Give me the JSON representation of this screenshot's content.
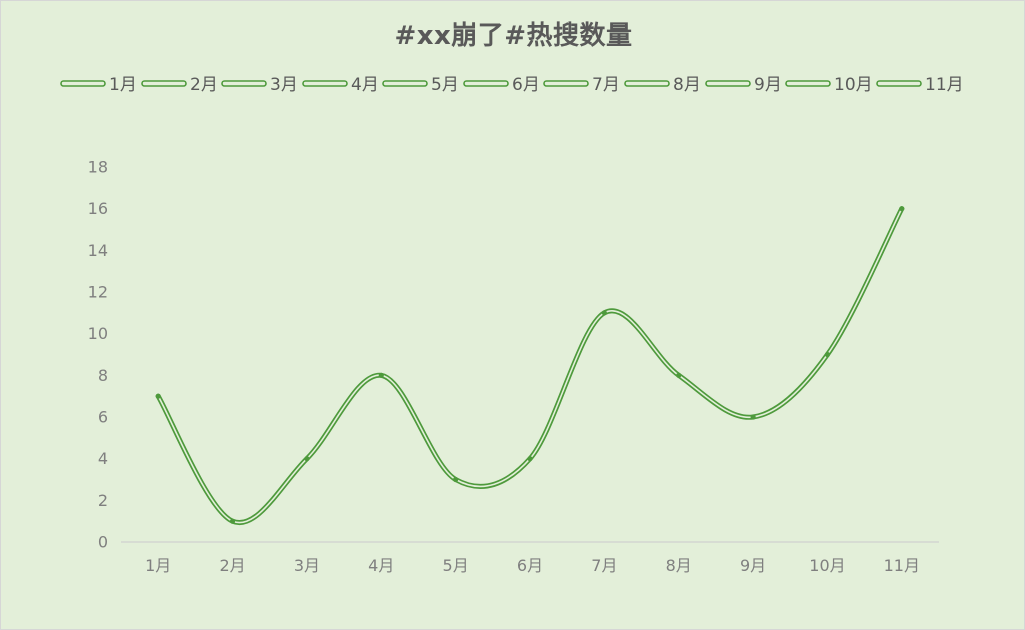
{
  "chart_data": {
    "type": "line",
    "title": "#xx崩了#热搜数量",
    "categories": [
      "1月",
      "2月",
      "3月",
      "4月",
      "5月",
      "6月",
      "7月",
      "8月",
      "9月",
      "10月",
      "11月"
    ],
    "series": [
      {
        "values": [
          7,
          1,
          4,
          8,
          3,
          4,
          11,
          8,
          6,
          9,
          16
        ]
      }
    ],
    "legend": [
      "1月",
      "2月",
      "3月",
      "4月",
      "5月",
      "6月",
      "7月",
      "8月",
      "9月",
      "10月",
      "11月"
    ],
    "legend_position": "top",
    "ylim": [
      0,
      18
    ],
    "yticks": [
      0,
      2,
      4,
      6,
      8,
      10,
      12,
      14,
      16,
      18
    ],
    "smooth": true,
    "grid": false,
    "line_color": "#4e9a3c",
    "line_inner_color": "#e3efd9",
    "background_color": "#e3efd9"
  }
}
